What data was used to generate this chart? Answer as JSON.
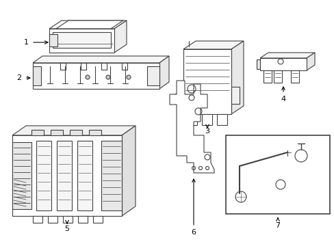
{
  "background_color": "#ffffff",
  "line_color": "#404040",
  "figsize": [
    4.89,
    3.6
  ],
  "dpi": 100
}
